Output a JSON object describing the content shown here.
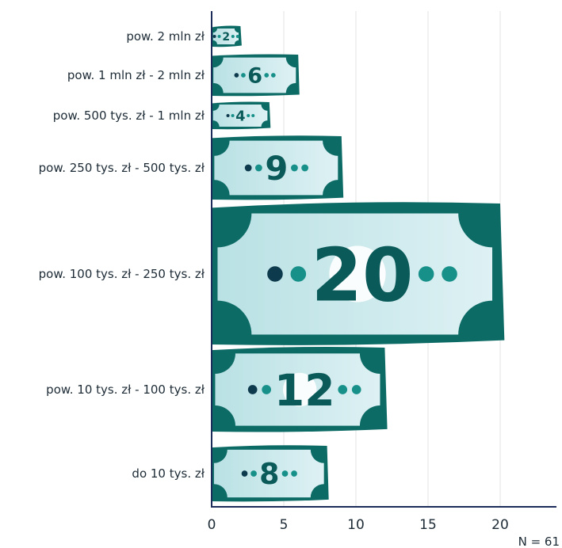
{
  "chart_data": {
    "type": "bar",
    "orientation": "horizontal",
    "categories": [
      "pow. 2 mln zł",
      "pow. 1 mln zł - 2 mln zł",
      "pow. 500 tys. zł - 1 mln zł",
      "pow. 250 tys. zł - 500 tys. zł",
      "pow. 100 tys. zł - 250 tys. zł",
      "pow. 10 tys. zł - 100 tys. zł",
      "do 10 tys. zł"
    ],
    "values": [
      2,
      6,
      4,
      9,
      20,
      12,
      8
    ],
    "value_labels": [
      "2",
      "6",
      "4",
      "9",
      "20",
      "12",
      "8"
    ],
    "xlim": [
      0,
      23
    ],
    "xticks": [
      0,
      5,
      10,
      15,
      20
    ],
    "xtick_labels": [
      "0",
      "5",
      "10",
      "15",
      "20"
    ],
    "grid": "vertical",
    "note": "N = 61",
    "colors": {
      "bill_frame": "#0d6b66",
      "bill_fill_left": "#b9e1e4",
      "bill_fill_right": "#def1f4",
      "value_text": "#0a5a5a",
      "dot_dark": "#0e3a4e",
      "dot_teal": "#169089",
      "axis": "#1d2b5a",
      "grid": "#e3e3e3"
    }
  }
}
